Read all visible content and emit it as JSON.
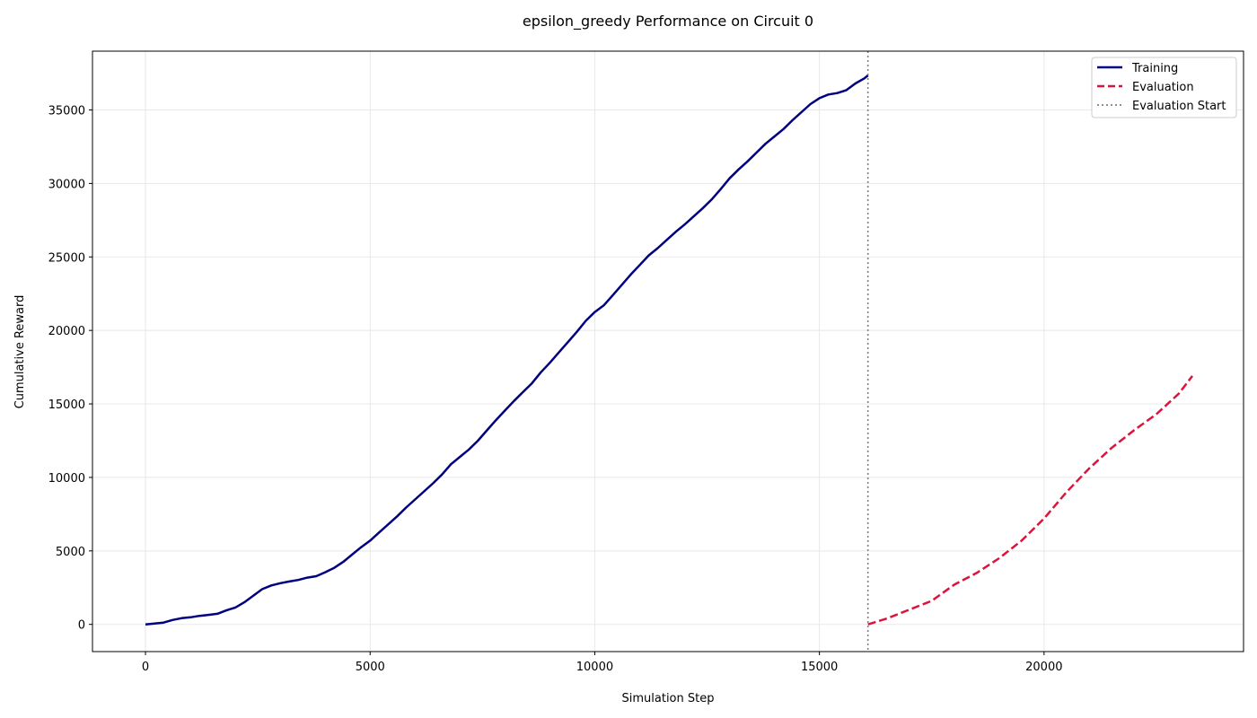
{
  "chart_data": {
    "type": "line",
    "title": "epsilon_greedy Performance on Circuit 0",
    "xlabel": "Simulation Step",
    "ylabel": "Cumulative Reward",
    "xlim": [
      -1180,
      24440
    ],
    "ylim": [
      -1850,
      39000
    ],
    "xticks": [
      0,
      5000,
      10000,
      15000,
      20000
    ],
    "yticks": [
      0,
      5000,
      10000,
      15000,
      20000,
      25000,
      30000,
      35000
    ],
    "grid": true,
    "legend_position": "top-right",
    "series": [
      {
        "name": "Training",
        "color": "#000080",
        "style": "solid",
        "points": [
          [
            0,
            0
          ],
          [
            200,
            60
          ],
          [
            400,
            120
          ],
          [
            600,
            300
          ],
          [
            800,
            420
          ],
          [
            1000,
            480
          ],
          [
            1200,
            580
          ],
          [
            1400,
            650
          ],
          [
            1600,
            720
          ],
          [
            1800,
            950
          ],
          [
            2000,
            1150
          ],
          [
            2200,
            1500
          ],
          [
            2400,
            1950
          ],
          [
            2600,
            2400
          ],
          [
            2800,
            2650
          ],
          [
            3000,
            2800
          ],
          [
            3200,
            2920
          ],
          [
            3400,
            3020
          ],
          [
            3600,
            3180
          ],
          [
            3800,
            3280
          ],
          [
            4000,
            3550
          ],
          [
            4200,
            3850
          ],
          [
            4400,
            4250
          ],
          [
            4600,
            4750
          ],
          [
            4800,
            5250
          ],
          [
            5000,
            5700
          ],
          [
            5200,
            6250
          ],
          [
            5400,
            6800
          ],
          [
            5600,
            7350
          ],
          [
            5800,
            7950
          ],
          [
            6000,
            8500
          ],
          [
            6200,
            9050
          ],
          [
            6400,
            9600
          ],
          [
            6600,
            10200
          ],
          [
            6800,
            10900
          ],
          [
            7000,
            11400
          ],
          [
            7200,
            11900
          ],
          [
            7400,
            12500
          ],
          [
            7600,
            13200
          ],
          [
            7800,
            13900
          ],
          [
            8000,
            14550
          ],
          [
            8200,
            15200
          ],
          [
            8400,
            15800
          ],
          [
            8600,
            16400
          ],
          [
            8800,
            17150
          ],
          [
            9000,
            17800
          ],
          [
            9200,
            18500
          ],
          [
            9400,
            19200
          ],
          [
            9600,
            19900
          ],
          [
            9800,
            20650
          ],
          [
            10000,
            21250
          ],
          [
            10200,
            21700
          ],
          [
            10400,
            22400
          ],
          [
            10600,
            23100
          ],
          [
            10800,
            23800
          ],
          [
            11000,
            24450
          ],
          [
            11200,
            25100
          ],
          [
            11400,
            25600
          ],
          [
            11600,
            26150
          ],
          [
            11800,
            26700
          ],
          [
            12000,
            27200
          ],
          [
            12200,
            27750
          ],
          [
            12400,
            28300
          ],
          [
            12600,
            28900
          ],
          [
            12800,
            29600
          ],
          [
            13000,
            30350
          ],
          [
            13200,
            30950
          ],
          [
            13400,
            31500
          ],
          [
            13600,
            32100
          ],
          [
            13800,
            32700
          ],
          [
            14000,
            33200
          ],
          [
            14200,
            33700
          ],
          [
            14400,
            34300
          ],
          [
            14600,
            34850
          ],
          [
            14800,
            35400
          ],
          [
            15000,
            35800
          ],
          [
            15200,
            36050
          ],
          [
            15400,
            36150
          ],
          [
            15600,
            36350
          ],
          [
            15800,
            36800
          ],
          [
            16000,
            37150
          ],
          [
            16080,
            37350
          ]
        ]
      },
      {
        "name": "Evaluation",
        "color": "#dc143c",
        "style": "dashed",
        "points": [
          [
            16080,
            0
          ],
          [
            16500,
            400
          ],
          [
            17000,
            1000
          ],
          [
            17500,
            1600
          ],
          [
            18000,
            2700
          ],
          [
            18500,
            3500
          ],
          [
            19000,
            4500
          ],
          [
            19500,
            5700
          ],
          [
            20000,
            7200
          ],
          [
            20500,
            9000
          ],
          [
            21000,
            10600
          ],
          [
            21500,
            12000
          ],
          [
            22000,
            13200
          ],
          [
            22500,
            14300
          ],
          [
            23000,
            15700
          ],
          [
            23300,
            16900
          ]
        ]
      }
    ],
    "vline": {
      "name": "Evaluation Start",
      "x": 16080,
      "color": "#808080",
      "style": "dotted"
    }
  }
}
